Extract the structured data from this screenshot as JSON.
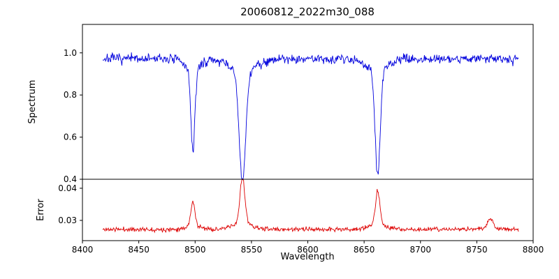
{
  "title": "20060812_2022m30_088",
  "chart_data": {
    "type": "line",
    "title": "20060812_2022m30_088",
    "xlabel": "Wavelength",
    "x_range": [
      8400,
      8800
    ],
    "x_data_range": [
      8418,
      8787
    ],
    "x_tick_values": [
      8400,
      8450,
      8500,
      8550,
      8600,
      8650,
      8700,
      8750,
      8800
    ],
    "x_tick_labels": [
      "8400",
      "8450",
      "8500",
      "8550",
      "8600",
      "8650",
      "8700",
      "8750",
      "8800"
    ],
    "grid": false,
    "legend": "none",
    "panels": [
      {
        "name": "spectrum",
        "ylabel": "Spectrum",
        "ylim": [
          0.4,
          1.135
        ],
        "y_tick_values": [
          0.4,
          0.6,
          0.8,
          1.0
        ],
        "y_tick_labels": [
          "0.4",
          "0.6",
          "0.8",
          "1.0"
        ],
        "color": "#0000dd",
        "baseline": 0.972,
        "noise": 0.02,
        "features": [
          {
            "center": 8498,
            "amplitude": -0.39,
            "width": 1.8
          },
          {
            "center": 8542,
            "amplitude": -0.53,
            "width": 2.8
          },
          {
            "center": 8662,
            "amplitude": -0.5,
            "width": 2.2
          }
        ]
      },
      {
        "name": "error",
        "ylabel": "Error",
        "ylim": [
          0.0237,
          0.0428
        ],
        "y_tick_values": [
          0.03,
          0.04
        ],
        "y_tick_labels": [
          "0.03",
          "0.04"
        ],
        "color": "#dd0000",
        "baseline": 0.0272,
        "noise": 0.0006,
        "features": [
          {
            "center": 8498,
            "amplitude": 0.0078,
            "width": 1.8
          },
          {
            "center": 8542,
            "amplitude": 0.0145,
            "width": 2.2
          },
          {
            "center": 8662,
            "amplitude": 0.0108,
            "width": 2.0
          },
          {
            "center": 8762,
            "amplitude": 0.003,
            "width": 2.5
          }
        ]
      }
    ]
  }
}
